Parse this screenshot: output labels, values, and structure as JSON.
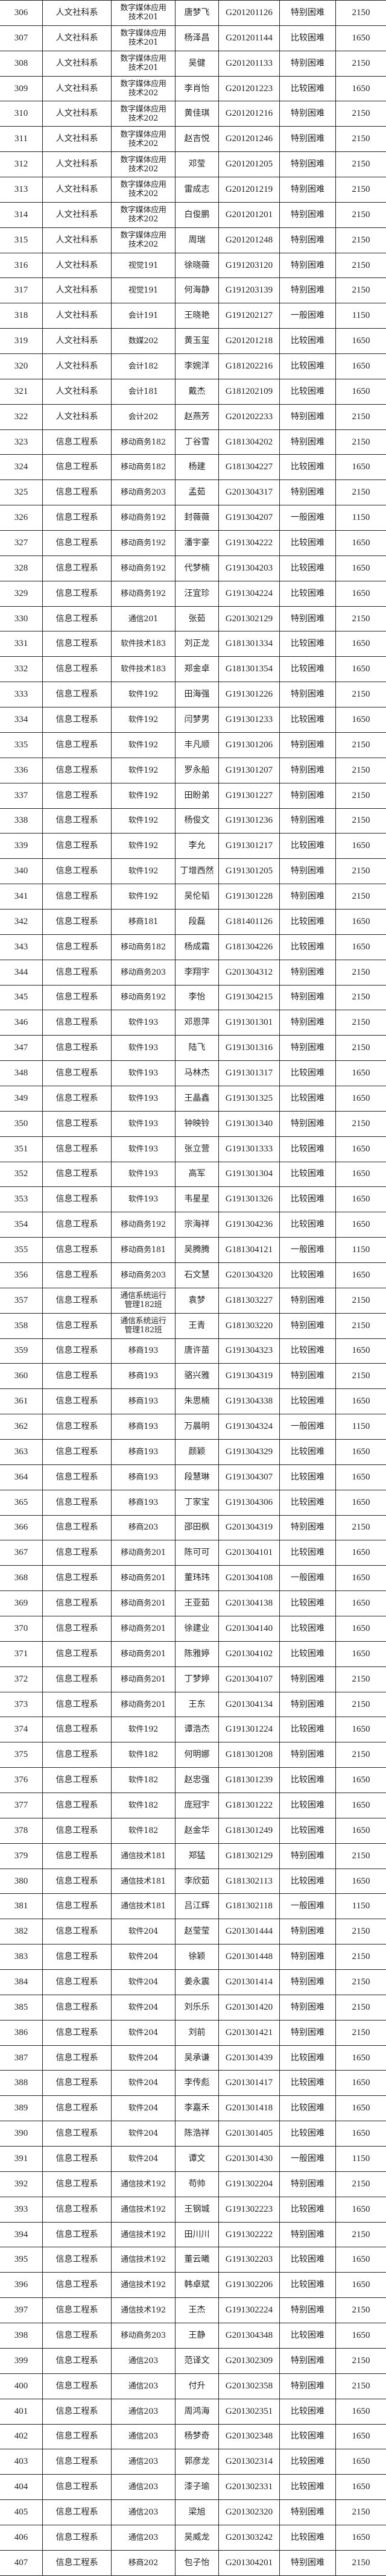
{
  "table": {
    "rows": [
      [
        "306",
        "人文社科系",
        "数字媒体应用\n技术201",
        "唐梦飞",
        "G201201126",
        "特别困难",
        "2150"
      ],
      [
        "307",
        "人文社科系",
        "数字媒体应用\n技术201",
        "杨泽昌",
        "G201201144",
        "比较困难",
        "1650"
      ],
      [
        "308",
        "人文社科系",
        "数字媒体应用\n技术201",
        "吴健",
        "G201201133",
        "特别困难",
        "2150"
      ],
      [
        "309",
        "人文社科系",
        "数字媒体应用\n技术202",
        "李肖怡",
        "G201201223",
        "比较困难",
        "1650"
      ],
      [
        "310",
        "人文社科系",
        "数字媒体应用\n技术202",
        "黄佳琪",
        "G201201216",
        "特别困难",
        "2150"
      ],
      [
        "311",
        "人文社科系",
        "数字媒体应用\n技术202",
        "赵吉悦",
        "G201201246",
        "特别困难",
        "2150"
      ],
      [
        "312",
        "人文社科系",
        "数字媒体应用\n技术202",
        "邓莹",
        "G201201205",
        "特别困难",
        "2150"
      ],
      [
        "313",
        "人文社科系",
        "数字媒体应用\n技术202",
        "雷成志",
        "G201201219",
        "特别困难",
        "2150"
      ],
      [
        "314",
        "人文社科系",
        "数字媒体应用\n技术202",
        "白俊鹏",
        "G201201201",
        "特别困难",
        "2150"
      ],
      [
        "315",
        "人文社科系",
        "数字媒体应用\n技术202",
        "周瑞",
        "G201201248",
        "特别困难",
        "2150"
      ],
      [
        "316",
        "人文社科系",
        "视觉191",
        "徐晓薇",
        "G191203120",
        "特别困难",
        "2150"
      ],
      [
        "317",
        "人文社科系",
        "视觉191",
        "何海静",
        "G191203139",
        "特别困难",
        "2150"
      ],
      [
        "318",
        "人文社科系",
        "会计191",
        "王晓艳",
        "G191202127",
        "一般困难",
        "1150"
      ],
      [
        "319",
        "人文社科系",
        "数媒202",
        "黄玉玺",
        "G201201218",
        "比较困难",
        "1650"
      ],
      [
        "320",
        "人文社科系",
        "会计182",
        "李婉洋",
        "G181202216",
        "比较困难",
        "1650"
      ],
      [
        "321",
        "人文社科系",
        "会计181",
        "戴杰",
        "G181202109",
        "比较困难",
        "1650"
      ],
      [
        "322",
        "人文社科系",
        "会计202",
        "赵燕芳",
        "G201202233",
        "特别困难",
        "2150"
      ],
      [
        "323",
        "信息工程系",
        "移动商务182",
        "丁谷雪",
        "G181304202",
        "特别困难",
        "2150"
      ],
      [
        "324",
        "信息工程系",
        "移动商务182",
        "杨建",
        "G181304227",
        "比较困难",
        "1650"
      ],
      [
        "325",
        "信息工程系",
        "移动商务203",
        "孟茹",
        "G201304317",
        "特别困难",
        "2150"
      ],
      [
        "326",
        "信息工程系",
        "移动商务192",
        "封薇薇",
        "G191304207",
        "一般困难",
        "1150"
      ],
      [
        "327",
        "信息工程系",
        "移动商务192",
        "潘宇豪",
        "G191304222",
        "比较困难",
        "1650"
      ],
      [
        "328",
        "信息工程系",
        "移动商务192",
        "代梦楠",
        "G191304203",
        "比较困难",
        "1650"
      ],
      [
        "329",
        "信息工程系",
        "移动商务192",
        "汪宜珍",
        "G191304224",
        "比较困难",
        "1650"
      ],
      [
        "330",
        "信息工程系",
        "通信201",
        "张茹",
        "G201302129",
        "特别困难",
        "2150"
      ],
      [
        "331",
        "信息工程系",
        "软件技术183",
        "刘正龙",
        "G181301334",
        "比较困难",
        "1650"
      ],
      [
        "332",
        "信息工程系",
        "软件技术183",
        "郑金卓",
        "G181301354",
        "比较困难",
        "1650"
      ],
      [
        "333",
        "信息工程系",
        "软件192",
        "田海强",
        "G191301226",
        "特别困难",
        "2150"
      ],
      [
        "334",
        "信息工程系",
        "软件192",
        "闫梦男",
        "G191301233",
        "比较困难",
        "1650"
      ],
      [
        "335",
        "信息工程系",
        "软件192",
        "丰凡顺",
        "G191301206",
        "特别困难",
        "2150"
      ],
      [
        "336",
        "信息工程系",
        "软件192",
        "罗永船",
        "G191301207",
        "特别困难",
        "2150"
      ],
      [
        "337",
        "信息工程系",
        "软件192",
        "田盼弟",
        "G191301227",
        "特别困难",
        "2150"
      ],
      [
        "338",
        "信息工程系",
        "软件192",
        "杨俊文",
        "G191301236",
        "特别困难",
        "2150"
      ],
      [
        "339",
        "信息工程系",
        "软件192",
        "李允",
        "G191301217",
        "比较困难",
        "1650"
      ],
      [
        "340",
        "信息工程系",
        "软件192",
        "丁增西然",
        "G191301205",
        "特别困难",
        "2150"
      ],
      [
        "341",
        "信息工程系",
        "软件192",
        "吴伦韬",
        "G191301228",
        "特别困难",
        "2150"
      ],
      [
        "342",
        "信息工程系",
        "移商181",
        "段磊",
        "G181401126",
        "比较困难",
        "1650"
      ],
      [
        "343",
        "信息工程系",
        "移动商务182",
        "杨成霜",
        "G181304226",
        "比较困难",
        "1650"
      ],
      [
        "344",
        "信息工程系",
        "移动商务203",
        "李翔宇",
        "G201304312",
        "特别困难",
        "2150"
      ],
      [
        "345",
        "信息工程系",
        "移动商务192",
        "李怡",
        "G191304215",
        "特别困难",
        "2150"
      ],
      [
        "346",
        "信息工程系",
        "软件193",
        "邓恩萍",
        "G191301301",
        "特别困难",
        "2150"
      ],
      [
        "347",
        "信息工程系",
        "软件193",
        "陆飞",
        "G191301316",
        "特别困难",
        "2150"
      ],
      [
        "348",
        "信息工程系",
        "软件193",
        "马林杰",
        "G191301317",
        "比较困难",
        "1650"
      ],
      [
        "349",
        "信息工程系",
        "软件193",
        "王晶鑫",
        "G191301325",
        "比较困难",
        "1650"
      ],
      [
        "350",
        "信息工程系",
        "软件193",
        "钟映铃",
        "G191301340",
        "特别困难",
        "2150"
      ],
      [
        "351",
        "信息工程系",
        "软件193",
        "张立营",
        "G191301333",
        "比较困难",
        "1650"
      ],
      [
        "352",
        "信息工程系",
        "软件193",
        "高军",
        "G191301304",
        "比较困难",
        "1650"
      ],
      [
        "353",
        "信息工程系",
        "软件193",
        "韦星星",
        "G191301326",
        "比较困难",
        "1650"
      ],
      [
        "354",
        "信息工程系",
        "移动商务192",
        "宗海祥",
        "G191304236",
        "比较困难",
        "1650"
      ],
      [
        "355",
        "信息工程系",
        "移动商务181",
        "吴腾腾",
        "G181304121",
        "一般困难",
        "1150"
      ],
      [
        "356",
        "信息工程系",
        "移动商务203",
        "石文慧",
        "G201304320",
        "比较困难",
        "1650"
      ],
      [
        "357",
        "信息工程系",
        "通信系统运行\n管理182班",
        "袁梦",
        "G181303227",
        "特别困难",
        "2150"
      ],
      [
        "358",
        "信息工程系",
        "通信系统运行\n管理182班",
        "王青",
        "G181303220",
        "特别困难",
        "2150"
      ],
      [
        "359",
        "信息工程系",
        "移商193",
        "唐许苗",
        "G191304323",
        "比较困难",
        "1650"
      ],
      [
        "360",
        "信息工程系",
        "移商193",
        "骆兴雅",
        "G191304319",
        "特别困难",
        "2150"
      ],
      [
        "361",
        "信息工程系",
        "移商193",
        "朱思楠",
        "G191304338",
        "比较困难",
        "1650"
      ],
      [
        "362",
        "信息工程系",
        "移商193",
        "万晨明",
        "G191304324",
        "一般困难",
        "1150"
      ],
      [
        "363",
        "信息工程系",
        "移商193",
        "颜颖",
        "G191304329",
        "比较困难",
        "1650"
      ],
      [
        "364",
        "信息工程系",
        "移商193",
        "段慧琳",
        "G191304307",
        "比较困难",
        "1650"
      ],
      [
        "365",
        "信息工程系",
        "移商193",
        "丁家宝",
        "G191304306",
        "比较困难",
        "1650"
      ],
      [
        "366",
        "信息工程系",
        "移商203",
        "邵田枫",
        "G201304319",
        "特别困难",
        "2150"
      ],
      [
        "367",
        "信息工程系",
        "移动商务201",
        "陈可可",
        "G201304101",
        "比较困难",
        "1650"
      ],
      [
        "368",
        "信息工程系",
        "移动商务201",
        "董玮玮",
        "G201304108",
        "一般困难",
        "1650"
      ],
      [
        "369",
        "信息工程系",
        "移动商务201",
        "王亚茹",
        "G201304138",
        "比较困难",
        "1650"
      ],
      [
        "370",
        "信息工程系",
        "移动商务201",
        "徐建业",
        "G201304140",
        "比较困难",
        "1650"
      ],
      [
        "371",
        "信息工程系",
        "移动商务201",
        "陈雅婷",
        "G201304102",
        "比较困难",
        "1650"
      ],
      [
        "372",
        "信息工程系",
        "移动商务201",
        "丁梦婷",
        "G201304107",
        "特别困难",
        "2150"
      ],
      [
        "373",
        "信息工程系",
        "移动商务201",
        "王东",
        "G201304134",
        "特别困难",
        "2150"
      ],
      [
        "374",
        "信息工程系",
        "软件192",
        "谭浩杰",
        "G191301224",
        "比较困难",
        "1650"
      ],
      [
        "375",
        "信息工程系",
        "软件182",
        "何明娜",
        "G181301208",
        "特别困难",
        "2150"
      ],
      [
        "376",
        "信息工程系",
        "软件182",
        "赵忠强",
        "G181301239",
        "比较困难",
        "1650"
      ],
      [
        "377",
        "信息工程系",
        "软件182",
        "庞冠宇",
        "G181301222",
        "比较困难",
        "1650"
      ],
      [
        "378",
        "信息工程系",
        "软件182",
        "赵金华",
        "G181301249",
        "比较困难",
        "1650"
      ],
      [
        "379",
        "信息工程系",
        "通信技术181",
        "郑猛",
        "G181302129",
        "特别困难",
        "2150"
      ],
      [
        "380",
        "信息工程系",
        "通信技术181",
        "李欣茹",
        "G181302113",
        "比较困难",
        "1650"
      ],
      [
        "381",
        "信息工程系",
        "通信技术181",
        "吕江辉",
        "G181302118",
        "一般困难",
        "1150"
      ],
      [
        "382",
        "信息工程系",
        "软件204",
        "赵莹莹",
        "G201301444",
        "特别困难",
        "2150"
      ],
      [
        "383",
        "信息工程系",
        "软件204",
        "徐颖",
        "G201301448",
        "特别困难",
        "2150"
      ],
      [
        "384",
        "信息工程系",
        "软件204",
        "姜永震",
        "G201301414",
        "特别困难",
        "2150"
      ],
      [
        "385",
        "信息工程系",
        "软件204",
        "刘乐乐",
        "G201301420",
        "特别困难",
        "2150"
      ],
      [
        "386",
        "信息工程系",
        "软件204",
        "刘前",
        "G201301421",
        "特别困难",
        "2150"
      ],
      [
        "387",
        "信息工程系",
        "软件204",
        "吴承谦",
        "G201301439",
        "比较困难",
        "1650"
      ],
      [
        "388",
        "信息工程系",
        "软件204",
        "李传彪",
        "G201301417",
        "比较困难",
        "1650"
      ],
      [
        "389",
        "信息工程系",
        "软件204",
        "李嘉禾",
        "G201301418",
        "比较困难",
        "1650"
      ],
      [
        "390",
        "信息工程系",
        "软件204",
        "陈浩祥",
        "G201301405",
        "比较困难",
        "1650"
      ],
      [
        "391",
        "信息工程系",
        "软件204",
        "谭文",
        "G201301430",
        "一般困难",
        "1150"
      ],
      [
        "392",
        "信息工程系",
        "通信技术192",
        "苟帅",
        "G191302204",
        "特别困难",
        "2150"
      ],
      [
        "393",
        "信息工程系",
        "通信技术192",
        "王钢城",
        "G191302223",
        "比较困难",
        "1650"
      ],
      [
        "394",
        "信息工程系",
        "通信技术192",
        "田川川",
        "G191302222",
        "特别困难",
        "2150"
      ],
      [
        "395",
        "信息工程系",
        "通信技术192",
        "董云曦",
        "G191302203",
        "比较困难",
        "1650"
      ],
      [
        "396",
        "信息工程系",
        "通信技术192",
        "韩卓斌",
        "G191302206",
        "比较困难",
        "1650"
      ],
      [
        "397",
        "信息工程系",
        "通信技术192",
        "王杰",
        "G191302224",
        "特别困难",
        "2150"
      ],
      [
        "398",
        "信息工程系",
        "移动商务203",
        "王静",
        "G201304348",
        "比较困难",
        "1650"
      ],
      [
        "399",
        "信息工程系",
        "通信203",
        "范译文",
        "G201302309",
        "特别困难",
        "2150"
      ],
      [
        "400",
        "信息工程系",
        "通信203",
        "付升",
        "G201302358",
        "特别困难",
        "2150"
      ],
      [
        "401",
        "信息工程系",
        "通信203",
        "周鸿海",
        "G201302351",
        "比较困难",
        "1650"
      ],
      [
        "402",
        "信息工程系",
        "通信203",
        "杨梦奇",
        "G201302348",
        "比较困难",
        "1650"
      ],
      [
        "403",
        "信息工程系",
        "通信203",
        "郭彦龙",
        "G201302314",
        "比较困难",
        "1650"
      ],
      [
        "404",
        "信息工程系",
        "通信203",
        "漆子瑜",
        "G201302331",
        "比较困难",
        "1650"
      ],
      [
        "405",
        "信息工程系",
        "通信203",
        "梁旭",
        "G201302320",
        "特别困难",
        "2150"
      ],
      [
        "406",
        "信息工程系",
        "通信203",
        "吴威龙",
        "G201303242",
        "比较困难",
        "1650"
      ],
      [
        "407",
        "信息工程系",
        "移商202",
        "包子怡",
        "G201304201",
        "特别困难",
        "2150"
      ]
    ]
  }
}
